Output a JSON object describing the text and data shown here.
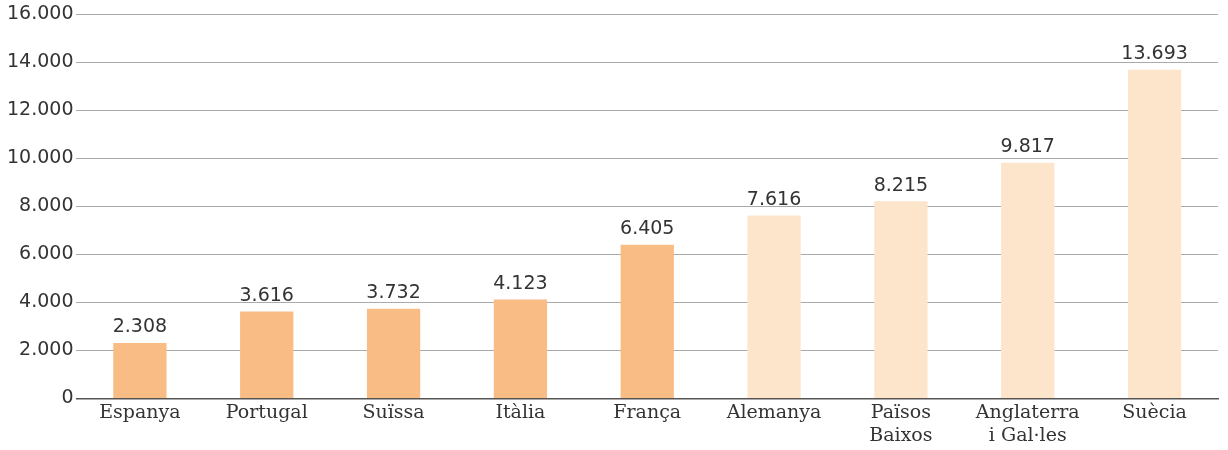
{
  "chart_data": {
    "type": "bar",
    "categories": [
      "Espanya",
      "Portugal",
      "Suïssa",
      "Itàlia",
      "França",
      "Alemanya",
      "Països Baixos",
      "Anglaterra i Gal·les",
      "Suècia"
    ],
    "values": [
      2308,
      3616,
      3732,
      4123,
      6405,
      7616,
      8215,
      9817,
      13693
    ],
    "colors": [
      "#f9bc84",
      "#f9bc84",
      "#f9bc84",
      "#f9bc84",
      "#f9bc84",
      "#fde5cc",
      "#fde5cc",
      "#fde5cc",
      "#fde5cc"
    ],
    "value_labels": [
      "2.308",
      "3.616",
      "3.732",
      "4.123",
      "6.405",
      "7.616",
      "8.215",
      "9.817",
      "13.693"
    ],
    "ylim": [
      0,
      16000
    ],
    "yticks": [
      0,
      {
        "value": 2000,
        "label": "2.000"
      },
      {
        "value": 4000,
        "label": "4.000"
      },
      {
        "value": 6000,
        "label": "6.000"
      },
      {
        "value": 8000,
        "label": "8.000"
      },
      {
        "value": 10000,
        "label": "10.000"
      },
      {
        "value": 12000,
        "label": "12.000"
      },
      {
        "value": 14000,
        "label": "14.000"
      },
      {
        "value": 16000,
        "label": "16.000"
      }
    ],
    "grid": "y",
    "legend": false
  }
}
